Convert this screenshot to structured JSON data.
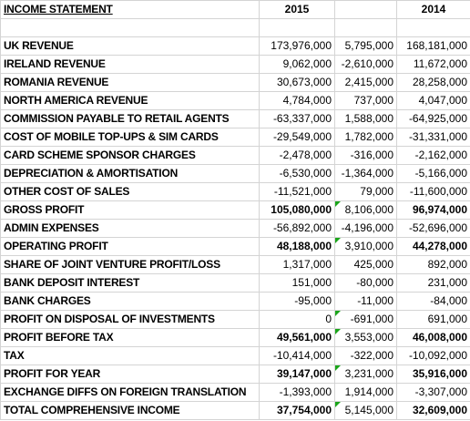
{
  "sheet": {
    "title": "INCOME STATEMENT",
    "year_current": "2015",
    "year_change": "",
    "year_prior": "2014",
    "rows": [
      {
        "label": "UK REVENUE",
        "v2015": "173,976,000",
        "change": "5,795,000",
        "sign": "pos",
        "v2014": "168,181,000",
        "bold": false,
        "flag": false
      },
      {
        "label": "IRELAND REVENUE",
        "v2015": "9,062,000",
        "change": "-2,610,000",
        "sign": "neg",
        "v2014": "11,672,000",
        "bold": false,
        "flag": false
      },
      {
        "label": "ROMANIA REVENUE",
        "v2015": "30,673,000",
        "change": "2,415,000",
        "sign": "pos",
        "v2014": "28,258,000",
        "bold": false,
        "flag": false
      },
      {
        "label": "NORTH AMERICA REVENUE",
        "v2015": "4,784,000",
        "change": "737,000",
        "sign": "pos",
        "v2014": "4,047,000",
        "bold": false,
        "flag": false
      },
      {
        "label": "COMMISSION PAYABLE TO RETAIL AGENTS",
        "v2015": "-63,337,000",
        "change": "1,588,000",
        "sign": "pos",
        "v2014": "-64,925,000",
        "bold": false,
        "flag": false
      },
      {
        "label": "COST OF MOBILE TOP-UPS & SIM CARDS",
        "v2015": "-29,549,000",
        "change": "1,782,000",
        "sign": "pos",
        "v2014": "-31,331,000",
        "bold": false,
        "flag": false
      },
      {
        "label": "CARD SCHEME SPONSOR CHARGES",
        "v2015": "-2,478,000",
        "change": "-316,000",
        "sign": "neg",
        "v2014": "-2,162,000",
        "bold": false,
        "flag": false
      },
      {
        "label": "DEPRECIATION & AMORTISATION",
        "v2015": "-6,530,000",
        "change": "-1,364,000",
        "sign": "neg",
        "v2014": "-5,166,000",
        "bold": false,
        "flag": false
      },
      {
        "label": "OTHER COST OF SALES",
        "v2015": "-11,521,000",
        "change": "79,000",
        "sign": "pos",
        "v2014": "-11,600,000",
        "bold": false,
        "flag": false
      },
      {
        "label": "GROSS PROFIT",
        "v2015": "105,080,000",
        "change": "8,106,000",
        "sign": "pos",
        "v2014": "96,974,000",
        "bold": true,
        "flag": true
      },
      {
        "label": "ADMIN EXPENSES",
        "v2015": "-56,892,000",
        "change": "-4,196,000",
        "sign": "neg",
        "v2014": "-52,696,000",
        "bold": false,
        "flag": false
      },
      {
        "label": "OPERATING PROFIT",
        "v2015": "48,188,000",
        "change": "3,910,000",
        "sign": "pos",
        "v2014": "44,278,000",
        "bold": true,
        "flag": true
      },
      {
        "label": "SHARE OF JOINT VENTURE PROFIT/LOSS",
        "v2015": "1,317,000",
        "change": "425,000",
        "sign": "pos",
        "v2014": "892,000",
        "bold": false,
        "flag": false
      },
      {
        "label": "BANK DEPOSIT INTEREST",
        "v2015": "151,000",
        "change": "-80,000",
        "sign": "neg",
        "v2014": "231,000",
        "bold": false,
        "flag": false
      },
      {
        "label": "BANK CHARGES",
        "v2015": "-95,000",
        "change": "-11,000",
        "sign": "neg",
        "v2014": "-84,000",
        "bold": false,
        "flag": false
      },
      {
        "label": "PROFIT ON DISPOSAL OF INVESTMENTS",
        "v2015": "0",
        "change": "-691,000",
        "sign": "neg",
        "v2014": "691,000",
        "bold": false,
        "flag": true
      },
      {
        "label": "PROFIT BEFORE TAX",
        "v2015": "49,561,000",
        "change": "3,553,000",
        "sign": "pos",
        "v2014": "46,008,000",
        "bold": true,
        "flag": true
      },
      {
        "label": "TAX",
        "v2015": "-10,414,000",
        "change": "-322,000",
        "sign": "neg",
        "v2014": "-10,092,000",
        "bold": false,
        "flag": false
      },
      {
        "label": "PROFIT FOR YEAR",
        "v2015": "39,147,000",
        "change": "3,231,000",
        "sign": "pos",
        "v2014": "35,916,000",
        "bold": true,
        "flag": true
      },
      {
        "label": "EXCHANGE DIFFS ON FOREIGN TRANSLATION",
        "v2015": "-1,393,000",
        "change": "1,914,000",
        "sign": "pos",
        "v2014": "-3,307,000",
        "bold": false,
        "flag": false
      },
      {
        "label": "TOTAL COMPREHENSIVE INCOME",
        "v2015": "37,754,000",
        "change": "5,145,000",
        "sign": "pos",
        "v2014": "32,609,000",
        "bold": true,
        "flag": true
      }
    ]
  },
  "colors": {
    "positive_change": "#1f2d8f",
    "negative_change": "#a30a0a",
    "flag_marker": "#1aa51a"
  }
}
